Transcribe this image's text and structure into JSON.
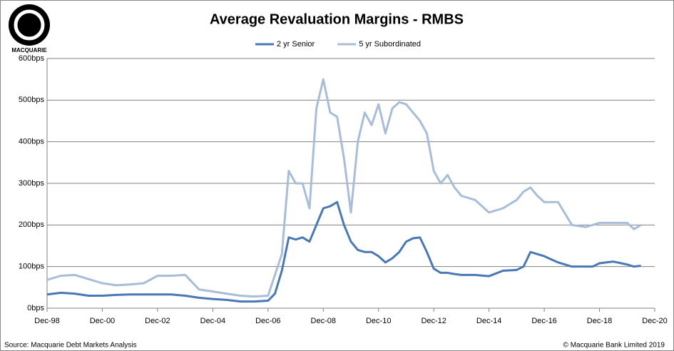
{
  "logo_text": "MACQUARIE",
  "chart_data": {
    "type": "line",
    "title": "Average Revaluation Margins - RMBS",
    "source": "Source: Macquarie Debt Markets Analysis",
    "copyright": "© Macquarie Bank Limited 2019",
    "x": [
      "1998-12",
      "1999-06",
      "1999-12",
      "2000-06",
      "2000-12",
      "2001-06",
      "2001-12",
      "2002-06",
      "2002-12",
      "2003-06",
      "2003-12",
      "2004-06",
      "2004-12",
      "2005-06",
      "2005-12",
      "2006-06",
      "2006-12",
      "2007-03",
      "2007-06",
      "2007-09",
      "2007-12",
      "2008-03",
      "2008-06",
      "2008-09",
      "2008-12",
      "2009-03",
      "2009-06",
      "2009-09",
      "2009-12",
      "2010-03",
      "2010-06",
      "2010-09",
      "2010-12",
      "2011-03",
      "2011-06",
      "2011-09",
      "2011-12",
      "2012-03",
      "2012-06",
      "2012-09",
      "2012-12",
      "2013-03",
      "2013-06",
      "2013-09",
      "2013-12",
      "2014-06",
      "2014-12",
      "2015-06",
      "2015-12",
      "2016-03",
      "2016-06",
      "2016-09",
      "2016-12",
      "2017-06",
      "2017-12",
      "2018-06",
      "2018-09",
      "2018-12",
      "2019-06",
      "2019-12",
      "2020-03",
      "2020-06"
    ],
    "series": [
      {
        "name": "2 yr Senior",
        "color": "#4a78b5",
        "width": 3,
        "values": [
          33,
          37,
          35,
          30,
          30,
          32,
          33,
          33,
          33,
          33,
          30,
          25,
          22,
          20,
          16,
          16,
          18,
          35,
          90,
          170,
          165,
          170,
          160,
          200,
          240,
          245,
          255,
          200,
          160,
          140,
          135,
          135,
          125,
          110,
          120,
          135,
          160,
          168,
          170,
          135,
          95,
          85,
          85,
          82,
          80,
          80,
          77,
          90,
          92,
          100,
          135,
          130,
          125,
          110,
          100,
          100,
          100,
          108,
          112,
          105,
          100,
          102
        ]
      },
      {
        "name": "5 yr Subordinated",
        "color": "#a9bcd8",
        "width": 3,
        "values": [
          68,
          78,
          80,
          70,
          60,
          55,
          57,
          60,
          78,
          78,
          80,
          45,
          40,
          35,
          30,
          28,
          30,
          80,
          130,
          330,
          300,
          300,
          240,
          480,
          550,
          470,
          460,
          360,
          230,
          400,
          470,
          440,
          490,
          420,
          480,
          495,
          490,
          470,
          450,
          420,
          330,
          300,
          320,
          290,
          270,
          260,
          230,
          240,
          260,
          280,
          290,
          270,
          255,
          255,
          200,
          195,
          200,
          205,
          205,
          205,
          190,
          200
        ]
      }
    ],
    "xlim": [
      "1998-12",
      "2020-12"
    ],
    "xticks": [
      {
        "value": "1998-12",
        "label": "Dec-98"
      },
      {
        "value": "2000-12",
        "label": "Dec-00"
      },
      {
        "value": "2002-12",
        "label": "Dec-02"
      },
      {
        "value": "2004-12",
        "label": "Dec-04"
      },
      {
        "value": "2006-12",
        "label": "Dec-06"
      },
      {
        "value": "2008-12",
        "label": "Dec-08"
      },
      {
        "value": "2010-12",
        "label": "Dec-10"
      },
      {
        "value": "2012-12",
        "label": "Dec-12"
      },
      {
        "value": "2014-12",
        "label": "Dec-14"
      },
      {
        "value": "2016-12",
        "label": "Dec-16"
      },
      {
        "value": "2018-12",
        "label": "Dec-18"
      },
      {
        "value": "2020-12",
        "label": "Dec-20"
      }
    ],
    "ylim": [
      0,
      600
    ],
    "yticks": [
      {
        "value": 0,
        "label": "0bps"
      },
      {
        "value": 100,
        "label": "100bps"
      },
      {
        "value": 200,
        "label": "200bps"
      },
      {
        "value": 300,
        "label": "300bps"
      },
      {
        "value": 400,
        "label": "400bps"
      },
      {
        "value": 500,
        "label": "500bps"
      },
      {
        "value": 600,
        "label": "600bps"
      }
    ],
    "grid": true
  }
}
